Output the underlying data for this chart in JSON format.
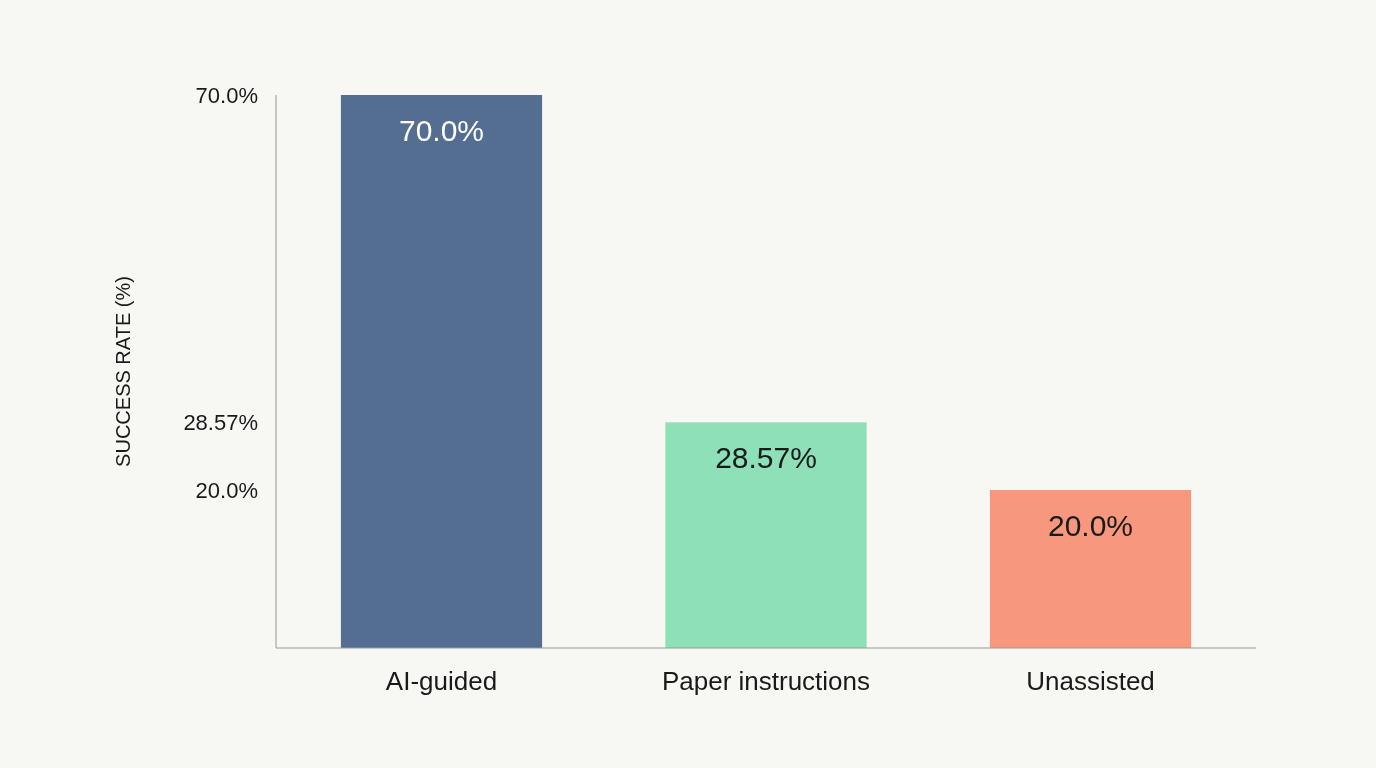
{
  "chart_data": {
    "type": "bar",
    "ylabel": "SUCCESS RATE (%)",
    "categories": [
      "AI-guided",
      "Paper instructions",
      "Unassisted"
    ],
    "values": [
      70.0,
      28.57,
      20.0
    ],
    "colors": [
      "#546e91",
      "#8de0b8",
      "#f7977e"
    ],
    "value_labels": [
      "70.0%",
      "28.57%",
      "20.0%"
    ],
    "ylim": [
      0,
      70
    ],
    "yticks": [
      {
        "value": 20,
        "label": "20.0%"
      },
      {
        "value": 28.57,
        "label": "28.57%"
      },
      {
        "value": 70,
        "label": "70.0%"
      }
    ],
    "grid": false
  }
}
